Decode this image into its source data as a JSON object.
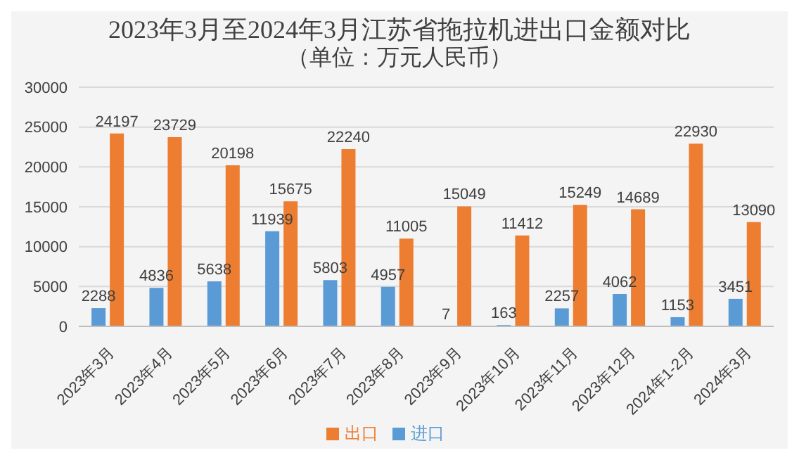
{
  "chart_data": {
    "type": "bar",
    "title": "2023年3月至2024年3月江苏省拖拉机进出口金额对比",
    "subtitle": "（单位：万元人民币）",
    "categories": [
      "2023年3月",
      "2023年4月",
      "2023年5月",
      "2023年6月",
      "2023年7月",
      "2023年8月",
      "2023年9月",
      "2023年10月",
      "2023年11月",
      "2023年12月",
      "2024年1-2月",
      "2024年3月"
    ],
    "series": [
      {
        "name": "进口",
        "color": "#5b9bd5",
        "values": [
          2288,
          4836,
          5638,
          11939,
          5803,
          4957,
          7,
          163,
          2257,
          4062,
          1153,
          3451
        ]
      },
      {
        "name": "出口",
        "color": "#ed7d31",
        "values": [
          24197,
          23729,
          20198,
          15675,
          22240,
          11005,
          15049,
          11412,
          15249,
          14689,
          22930,
          13090
        ]
      }
    ],
    "ylim": [
      0,
      30000
    ],
    "yticks": [
      0,
      5000,
      10000,
      15000,
      20000,
      25000,
      30000
    ],
    "grid": "y",
    "legend": "bottom",
    "data_labels": true
  }
}
